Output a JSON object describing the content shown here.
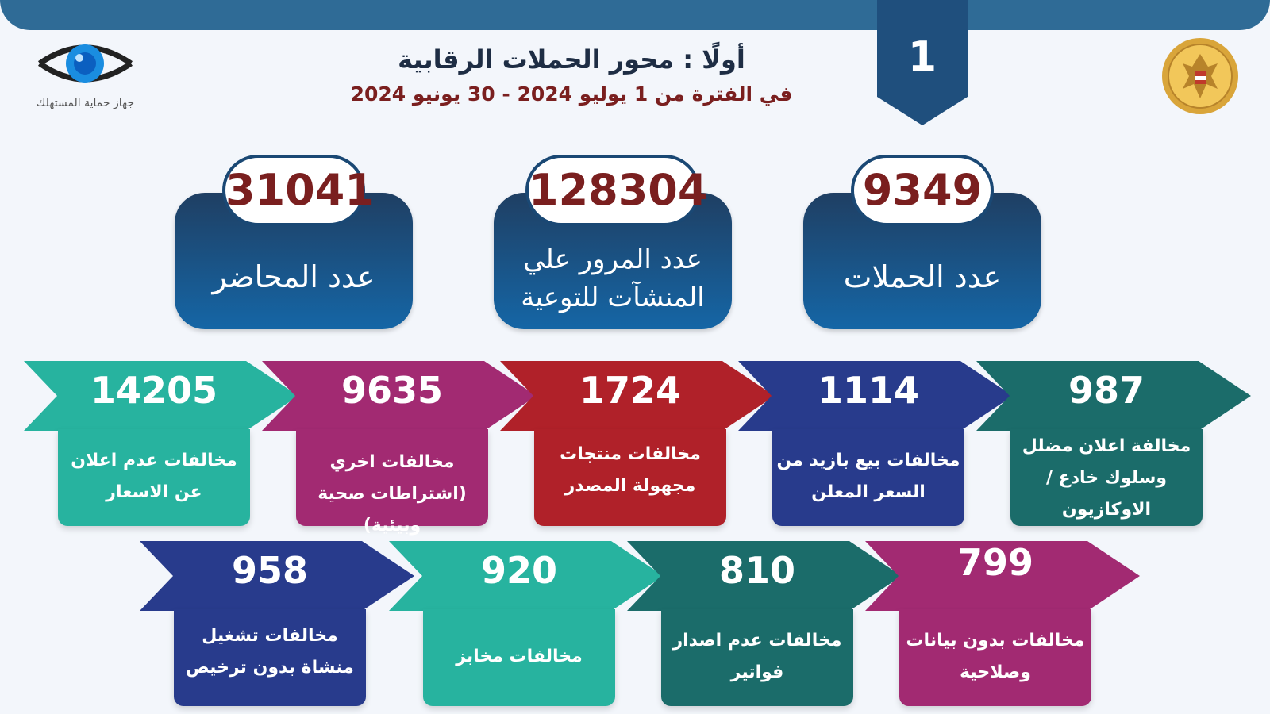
{
  "page_number": "1",
  "heading": {
    "title": "أولًا : محور الحملات الرقابية",
    "subtitle": "في الفترة من 1 يوليو 2024 - 30 يونيو 2024"
  },
  "agency_logo_text": "جهاز حماية المستهلك",
  "stats": [
    {
      "value": "31041",
      "label": "عدد المحاضر"
    },
    {
      "value": "128304",
      "label": "عدد المرور علي المنشآت للتوعية"
    },
    {
      "value": "9349",
      "label": "عدد الحملات"
    }
  ],
  "violations_row1": [
    {
      "value": "14205",
      "label": "مخالفات عدم اعلان عن الاسعار",
      "color": "#27b39f"
    },
    {
      "value": "9635",
      "label": "مخالفات اخري (اشتراطات صحية وبيئية)",
      "color": "#a22a72"
    },
    {
      "value": "1724",
      "label": "مخالفات منتجات مجهولة المصدر",
      "color": "#b02129"
    },
    {
      "value": "1114",
      "label": "مخالفات بيع بازيد من السعر المعلن",
      "color": "#283b8c"
    },
    {
      "value": "987",
      "label": "مخالفة اعلان مضلل وسلوك خادع / الاوكازيون",
      "color": "#1b6c6a"
    }
  ],
  "violations_row2": [
    {
      "value": "958",
      "label": "مخالفات تشغيل منشاة بدون ترخيص",
      "color": "#283b8c"
    },
    {
      "value": "920",
      "label": "مخالفات مخابز",
      "color": "#27b39f"
    },
    {
      "value": "810",
      "label": "مخالفات عدم اصدار فواتير",
      "color": "#1b6c6a"
    },
    {
      "value": "799",
      "label": "مخالفات بدون بيانات وصلاحية",
      "color": "#a22a72"
    }
  ],
  "colors": {
    "header": "#2f6b96",
    "stat_gradient_top": "#1f3f63",
    "stat_gradient_bottom": "#1566a6",
    "value_dark_red": "#7a1f1f"
  }
}
